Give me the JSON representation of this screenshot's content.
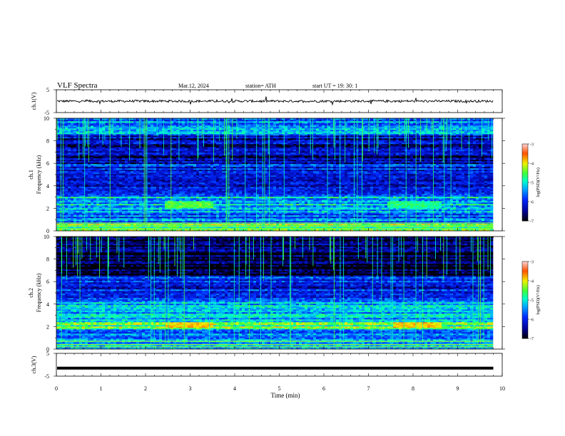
{
  "header": {
    "title": "VLF  Spectra",
    "date": "Mar.12, 2024",
    "station": "station= ATH",
    "start": "start  UT  =    19: 30: 1"
  },
  "chart_data": [
    {
      "type": "line",
      "panel": "ch1-waveform",
      "ylabel": "ch.1(V)",
      "xlim": [
        0,
        10
      ],
      "ylim": [
        -5,
        5
      ],
      "yticks": [
        "5",
        "-5"
      ],
      "signal_note": "noisy waveform around 0 V with spikes to roughly ±1 V",
      "baseline_value": 0,
      "amplitude": 0.5
    },
    {
      "type": "heatmap",
      "panel": "ch1-spectrogram",
      "ylabel_top": "ch.1",
      "ylabel": "Frequency  (kHz)",
      "xlim": [
        0,
        10
      ],
      "ylim": [
        0,
        10
      ],
      "yticks": [
        "0",
        "2",
        "4",
        "6",
        "8",
        "10"
      ],
      "data_end_min": 9.8,
      "colorbar": {
        "label": "log(PSD)(V²/Hz)",
        "range": [
          -7,
          -3
        ],
        "ticks": [
          "-3",
          "-4",
          "-5",
          "-6",
          "-7"
        ]
      },
      "bands": [
        {
          "f0": 0.0,
          "f1": 0.6,
          "level": -4.4
        },
        {
          "f0": 0.6,
          "f1": 1.5,
          "level": -5.6
        },
        {
          "f0": 1.5,
          "f1": 3.0,
          "level": -5.2
        },
        {
          "f0": 3.0,
          "f1": 6.0,
          "level": -6.0
        },
        {
          "f0": 6.0,
          "f1": 8.5,
          "level": -6.4
        },
        {
          "f0": 8.5,
          "f1": 10.0,
          "level": -5.6
        }
      ],
      "enhancements": [
        {
          "t0": 2.4,
          "t1": 3.5,
          "f0": 2.0,
          "f1": 2.7,
          "level": -4.5
        },
        {
          "t0": 7.4,
          "t1": 8.6,
          "f0": 2.0,
          "f1": 2.6,
          "level": -4.8
        }
      ]
    },
    {
      "type": "heatmap",
      "panel": "ch2-spectrogram",
      "ylabel_top": "ch.2",
      "ylabel": "Frequency  (kHz)",
      "xlim": [
        0,
        10
      ],
      "ylim": [
        0,
        10
      ],
      "yticks": [
        "0",
        "2",
        "4",
        "6",
        "8",
        "10"
      ],
      "data_end_min": 9.8,
      "colorbar": {
        "label": "log(PSD)(V²/Hz)",
        "range": [
          -7,
          -3
        ],
        "ticks": [
          "-3",
          "-4",
          "-5",
          "-6",
          "-7"
        ]
      },
      "bands": [
        {
          "f0": 0.0,
          "f1": 0.5,
          "level": -5.0
        },
        {
          "f0": 0.5,
          "f1": 1.8,
          "level": -5.4
        },
        {
          "f0": 1.8,
          "f1": 2.4,
          "level": -4.6
        },
        {
          "f0": 2.4,
          "f1": 4.2,
          "level": -5.4
        },
        {
          "f0": 4.2,
          "f1": 6.5,
          "level": -6.0
        },
        {
          "f0": 6.5,
          "f1": 10.0,
          "level": -6.8
        }
      ],
      "enhancements": [
        {
          "t0": 2.4,
          "t1": 3.5,
          "f0": 1.9,
          "f1": 2.4,
          "level": -3.9
        },
        {
          "t0": 7.5,
          "t1": 8.6,
          "f0": 1.9,
          "f1": 2.4,
          "level": -3.9
        }
      ]
    },
    {
      "type": "line",
      "panel": "ch3-waveform",
      "ylabel": "ch.3(V)",
      "xlim": [
        0,
        10
      ],
      "ylim": [
        -5,
        5
      ],
      "yticks": [
        "5",
        "-5"
      ],
      "baseline_value": -1.5
    }
  ],
  "xaxis": {
    "label": "Time  (min)",
    "ticks": [
      "0",
      "1",
      "2",
      "3",
      "4",
      "5",
      "6",
      "7",
      "8",
      "9",
      "10"
    ]
  }
}
